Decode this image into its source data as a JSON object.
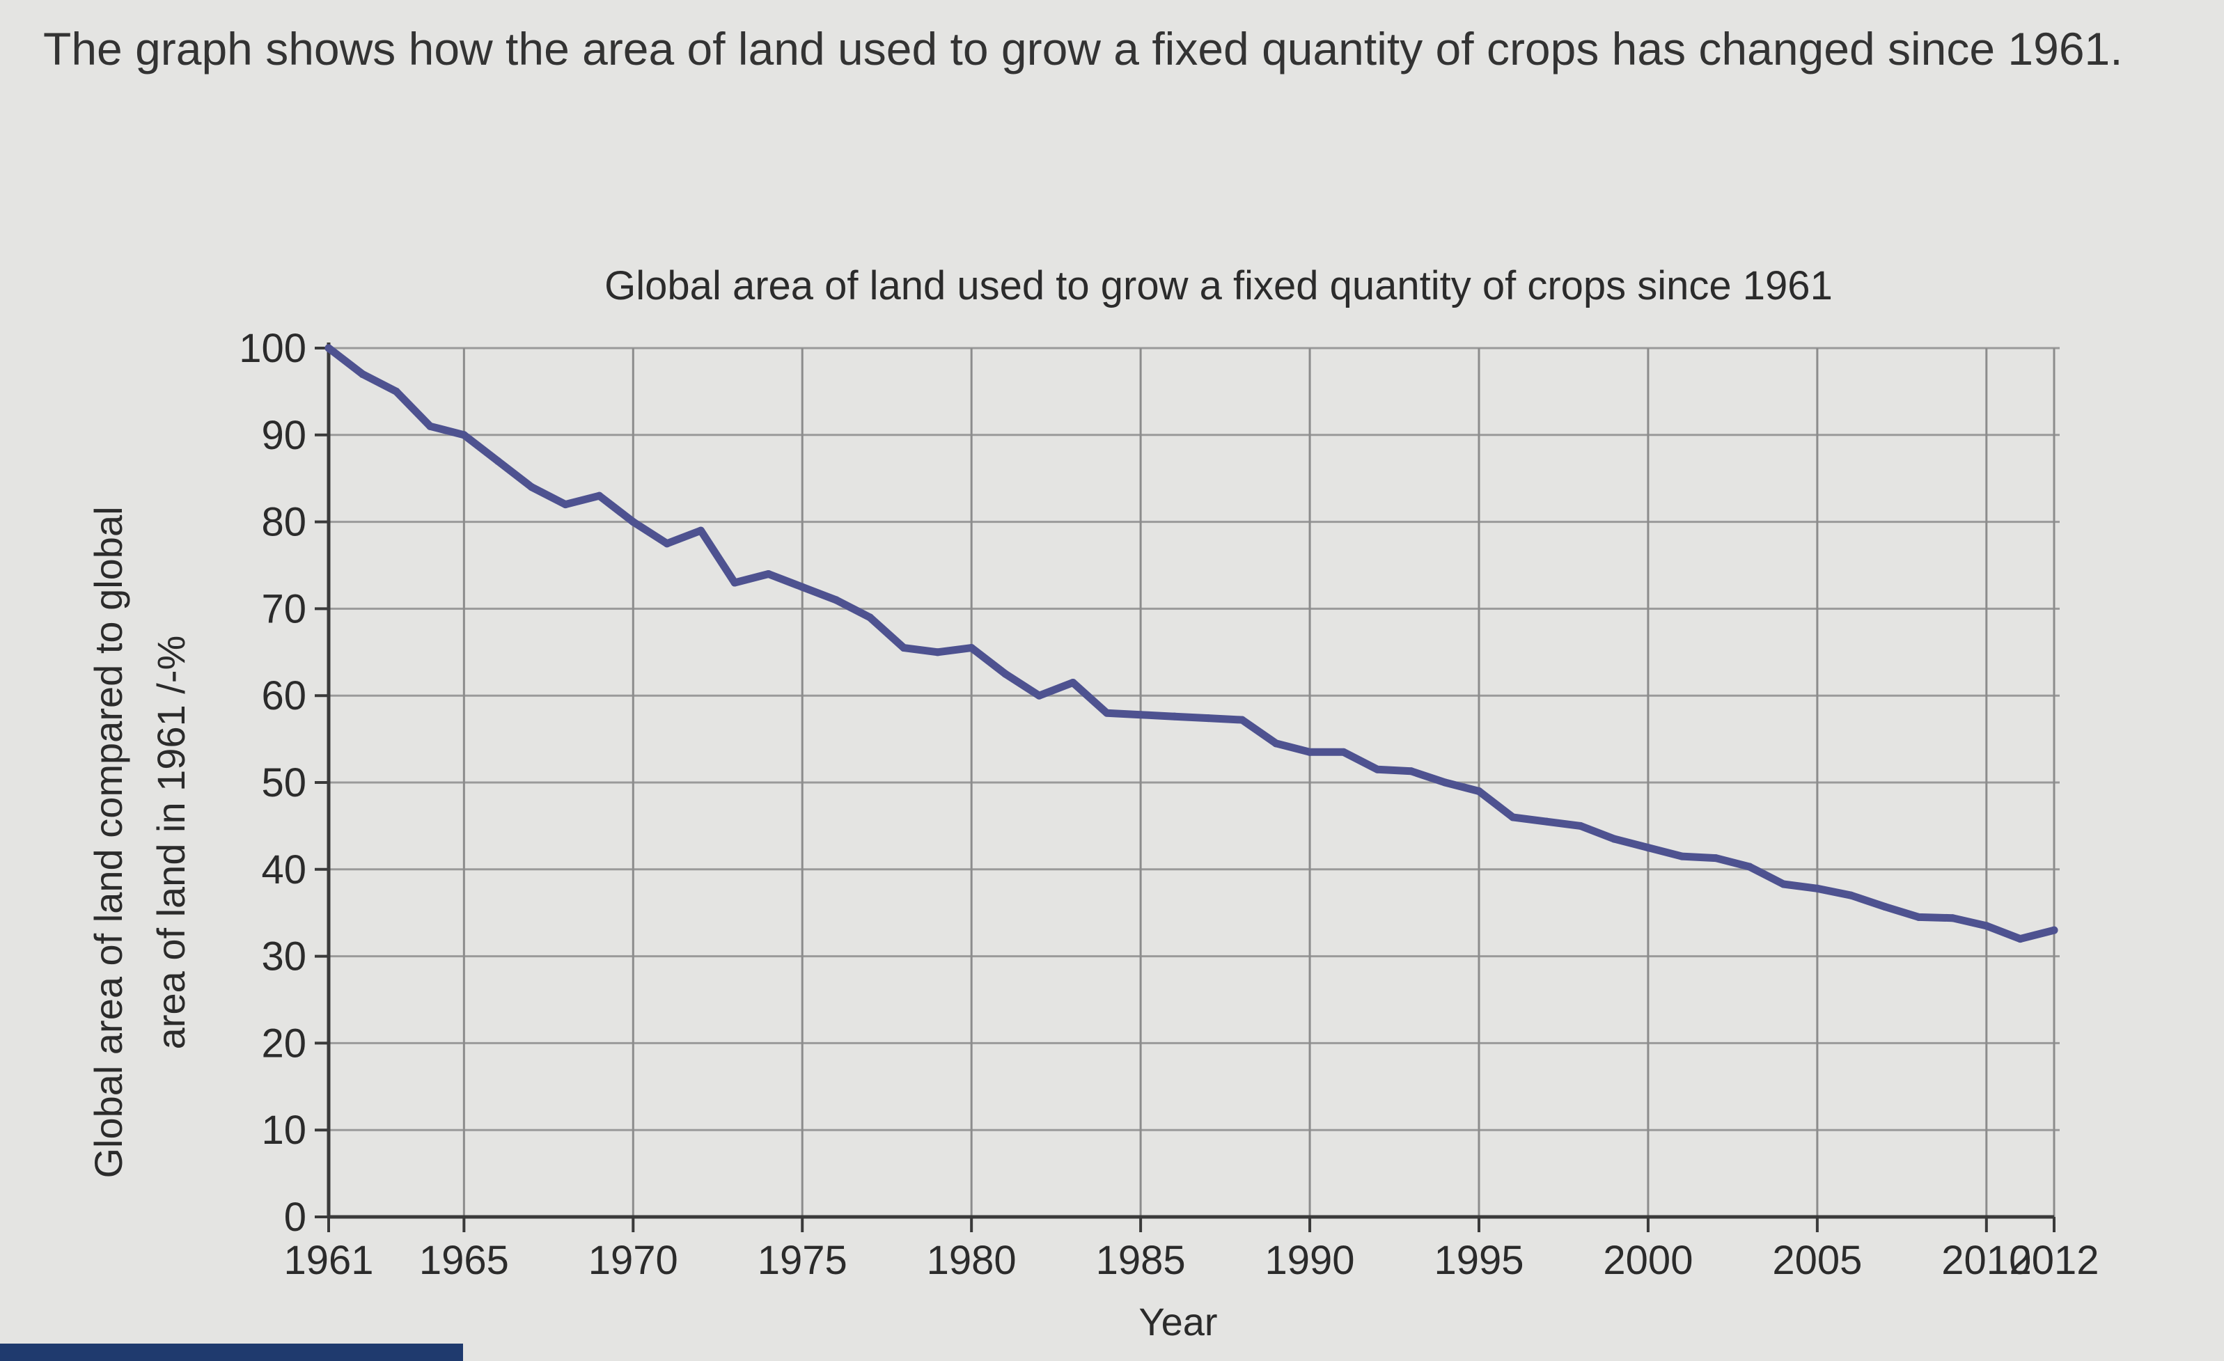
{
  "intro_text": "The graph shows how the area of land used to grow a fixed quantity of crops has changed since 1961.",
  "chart_data": {
    "type": "line",
    "title": "Global area of land used to grow a fixed quantity of crops since 1961",
    "xlabel": "Year",
    "ylabel_lines": [
      "Global area of land compared to global",
      "area of land in 1961 /-%"
    ],
    "xlim": [
      1961,
      2012
    ],
    "ylim": [
      0,
      100
    ],
    "x_ticks": [
      1961,
      1965,
      1970,
      1975,
      1980,
      1985,
      1990,
      1995,
      2000,
      2005,
      2010,
      2012
    ],
    "x_gridlines": [
      1965,
      1970,
      1975,
      1980,
      1985,
      1990,
      1995,
      2000,
      2005,
      2010,
      2012
    ],
    "y_ticks": [
      0,
      10,
      20,
      30,
      40,
      50,
      60,
      70,
      80,
      90,
      100
    ],
    "grid": true,
    "line_color": "#4e5290",
    "series": [
      {
        "x": [
          1961,
          1962,
          1963,
          1964,
          1965,
          1966,
          1967,
          1968,
          1969,
          1970,
          1971,
          1972,
          1973,
          1974,
          1975,
          1976,
          1977,
          1978,
          1979,
          1980,
          1981,
          1982,
          1983,
          1984,
          1985,
          1986,
          1987,
          1988,
          1989,
          1990,
          1991,
          1992,
          1993,
          1994,
          1995,
          1996,
          1997,
          1998,
          1999,
          2000,
          2001,
          2002,
          2003,
          2004,
          2005,
          2006,
          2007,
          2008,
          2009,
          2010,
          2011,
          2012
        ],
        "values": [
          100,
          97,
          95,
          91,
          90,
          87,
          84,
          82,
          83,
          80,
          77.5,
          79,
          73,
          74,
          72.5,
          71,
          69,
          65.5,
          65,
          65.5,
          62.5,
          60,
          61.5,
          58,
          57.8,
          57.6,
          57.4,
          57.2,
          54.5,
          53.5,
          53.5,
          51.5,
          51.3,
          50,
          49,
          46,
          45.5,
          45,
          43.5,
          42.5,
          41.5,
          41.3,
          40.3,
          38.3,
          37.8,
          37,
          35.7,
          34.5,
          34.4,
          33.5,
          32,
          33
        ]
      }
    ]
  }
}
